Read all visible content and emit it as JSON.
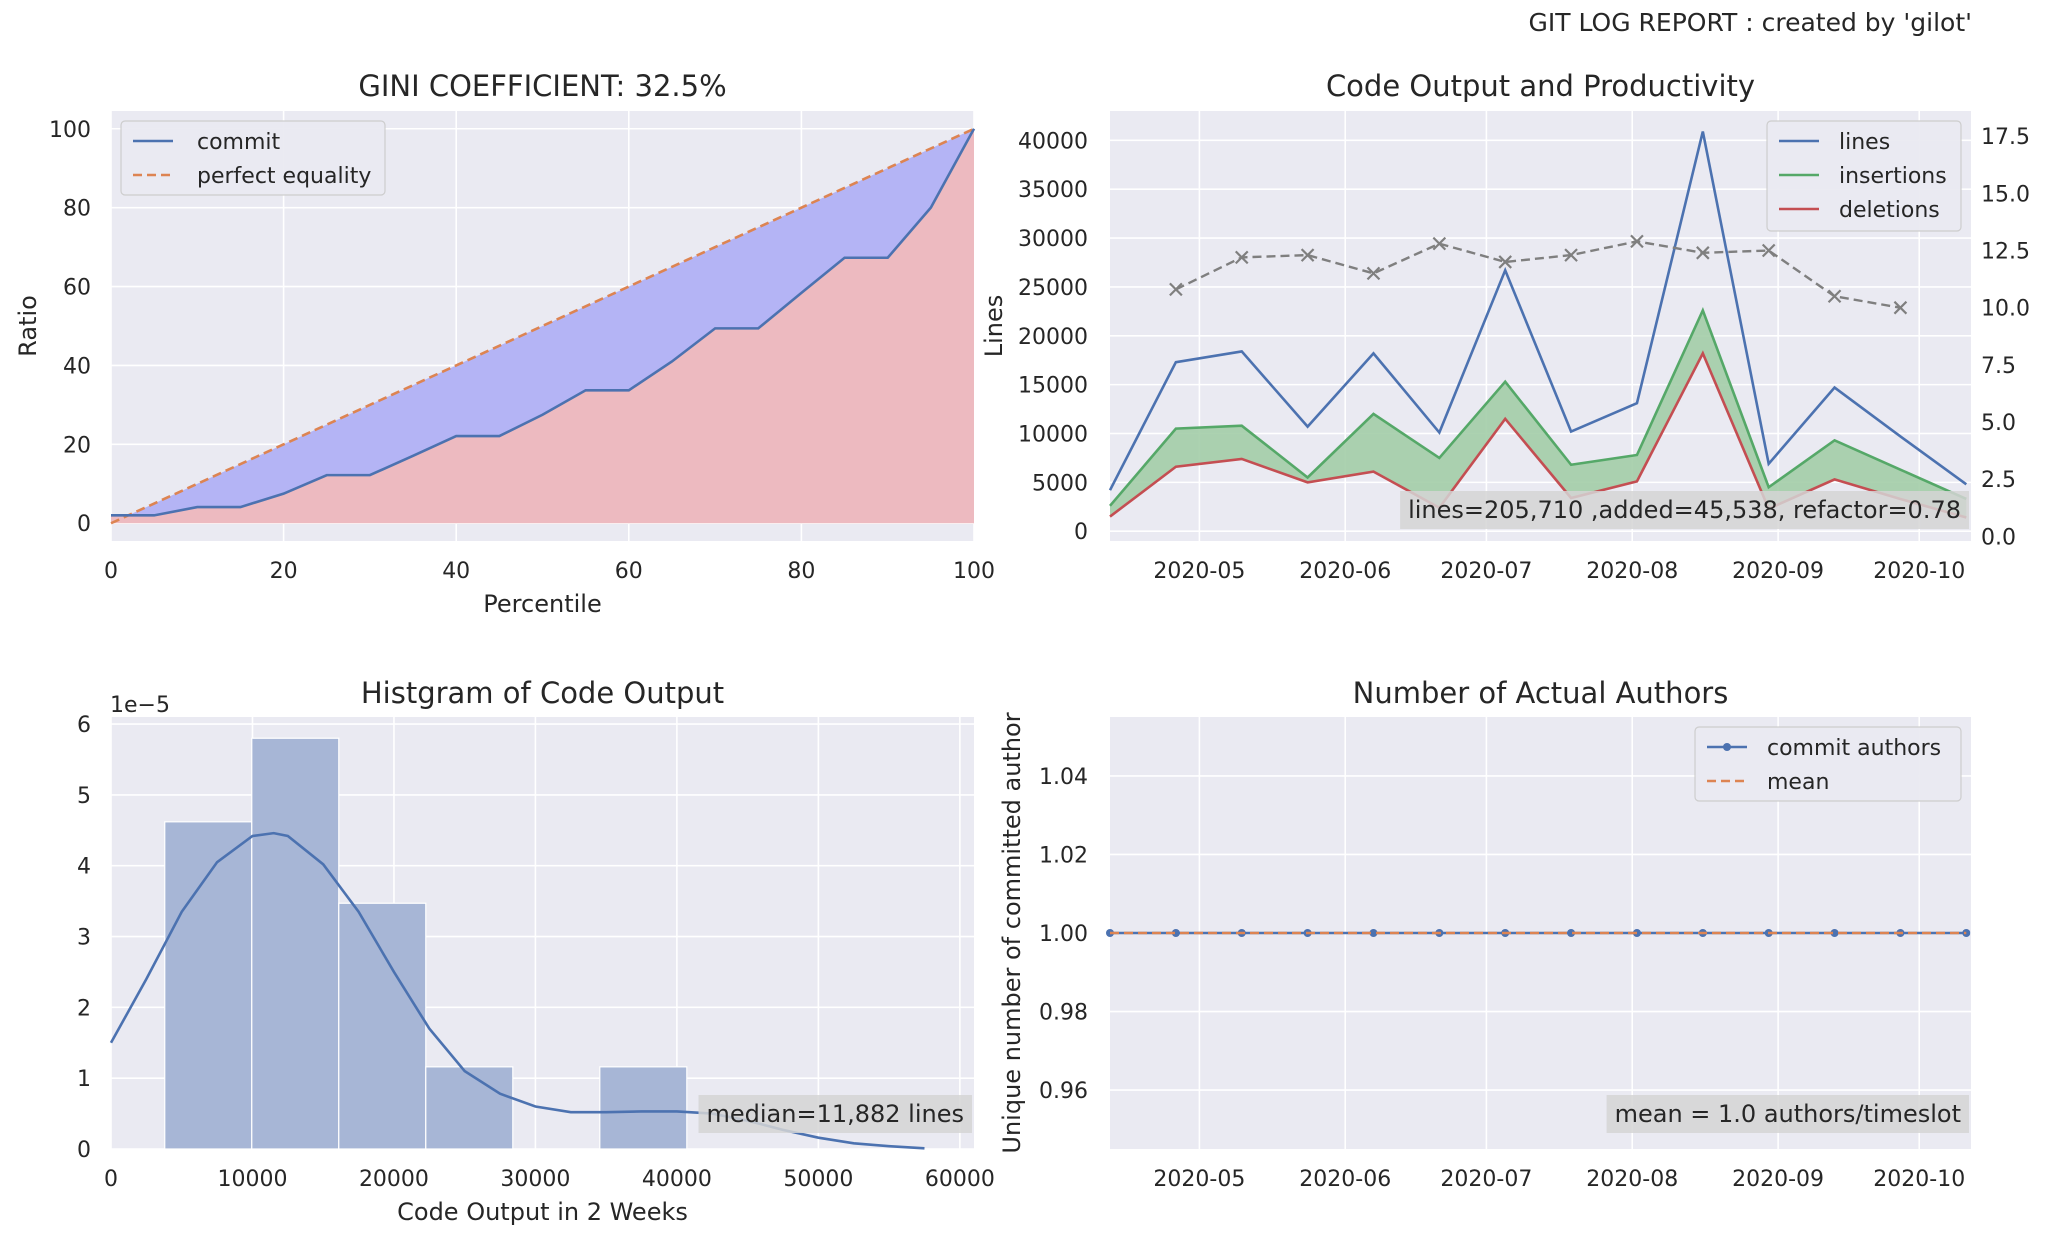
{
  "page_title": "GIT LOG REPORT : created by 'gilot'",
  "colors": {
    "plot_bg": "#EAEAF2",
    "grid": "#FFFFFF",
    "blue": "#4C72B0",
    "orange": "#DD8452",
    "green": "#55A868",
    "red": "#C44E52",
    "gray": "#7F7F7F",
    "fill_blue": "#B4B4F5",
    "fill_red": "#EDBAC0",
    "fill_green": "#A3CDA7",
    "hist": "#A7B6D6",
    "annot_bg": "#D5D5D5"
  },
  "chart_data": [
    {
      "type": "line",
      "title": "GINI COEFFICIENT: 32.5%",
      "xlabel": "Percentile",
      "ylabel": "Ratio",
      "xlim": [
        0,
        100
      ],
      "ylim": [
        -4.5,
        104.5
      ],
      "xticks": [
        0,
        20,
        40,
        60,
        80,
        100
      ],
      "yticks": [
        0,
        20,
        40,
        60,
        80,
        100
      ],
      "series": [
        {
          "name": "commit",
          "x": [
            0,
            5,
            10,
            15,
            20,
            25,
            30,
            35,
            40,
            45,
            50,
            55,
            60,
            65,
            70,
            75,
            80,
            85,
            90,
            95,
            100
          ],
          "y": [
            2,
            2,
            4.1,
            4.1,
            7.5,
            12.2,
            12.2,
            17.1,
            22.1,
            22.1,
            27.5,
            33.7,
            33.7,
            41,
            49.4,
            49.4,
            58.4,
            67.3,
            67.3,
            80,
            100
          ]
        },
        {
          "name": "perfect equality",
          "x": [
            0,
            100
          ],
          "y": [
            0,
            100
          ]
        }
      ],
      "legend": "top-left",
      "grid": true
    },
    {
      "type": "line",
      "title": "Code Output and Productivity",
      "ylabel": "Lines",
      "xlim": [
        "2020-04-12",
        "2020-10-12"
      ],
      "ylim": [
        -1000,
        43000
      ],
      "y2lim": [
        -0.2,
        18.6
      ],
      "x_dates": [
        "2020-04-12",
        "2020-04-26",
        "2020-05-10",
        "2020-05-24",
        "2020-06-07",
        "2020-06-21",
        "2020-07-05",
        "2020-07-19",
        "2020-08-02",
        "2020-08-16",
        "2020-08-30",
        "2020-09-13",
        "2020-09-27",
        "2020-10-11"
      ],
      "xticks": [
        "2020-05-01",
        "2020-06-01",
        "2020-07-01",
        "2020-08-01",
        "2020-09-01",
        "2020-10-01"
      ],
      "xtick_labels": [
        "2020-05",
        "2020-06",
        "2020-07",
        "2020-08",
        "2020-09",
        "2020-10"
      ],
      "yticks": [
        0,
        5000,
        10000,
        15000,
        20000,
        25000,
        30000,
        35000,
        40000
      ],
      "y2ticks": [
        0.0,
        2.5,
        5.0,
        7.5,
        10.0,
        12.5,
        15.0,
        17.5
      ],
      "y2tick_labels": [
        "0.0",
        "2.5",
        "5.0",
        "7.5",
        "10.0",
        "12.5",
        "15.0",
        "17.5"
      ],
      "series": [
        {
          "name": "lines",
          "values": [
            4200,
            17300,
            18400,
            10700,
            18200,
            10100,
            26700,
            10200,
            13100,
            40900,
            6900,
            14700,
            9700,
            4800
          ]
        },
        {
          "name": "insertions",
          "values": [
            2600,
            10500,
            10800,
            5500,
            12000,
            7500,
            15300,
            6800,
            7800,
            22600,
            4500,
            9300,
            6300,
            3300
          ]
        },
        {
          "name": "deletions",
          "values": [
            1500,
            6600,
            7400,
            5000,
            6100,
            2400,
            11500,
            3400,
            5100,
            18200,
            2300,
            5300,
            3300,
            1400
          ]
        }
      ],
      "productivity": {
        "x_dates": [
          "2020-04-26",
          "2020-05-10",
          "2020-05-24",
          "2020-06-07",
          "2020-06-21",
          "2020-07-05",
          "2020-07-19",
          "2020-08-02",
          "2020-08-16",
          "2020-08-30",
          "2020-09-13",
          "2020-09-27"
        ],
        "values": [
          10.8,
          12.2,
          12.3,
          11.5,
          12.8,
          12.0,
          12.3,
          12.9,
          12.4,
          12.5,
          10.5,
          10.0
        ]
      },
      "annotation": "lines=205,710 ,added=45,538, refactor=0.78",
      "legend": "top-right",
      "grid": true
    },
    {
      "type": "bar",
      "title": "Histgram of Code Output",
      "xlabel": "Code Output in 2 Weeks",
      "y_offset_label": "1e−5",
      "xlim": [
        0,
        61000
      ],
      "ylim": [
        0,
        6.1
      ],
      "xticks": [
        0,
        10000,
        20000,
        30000,
        40000,
        50000,
        60000
      ],
      "yticks": [
        0,
        1,
        2,
        3,
        4,
        5,
        6
      ],
      "bins": [
        {
          "x0": 3800,
          "x1": 9950,
          "value": 4.62
        },
        {
          "x0": 9950,
          "x1": 16100,
          "value": 5.8
        },
        {
          "x0": 16100,
          "x1": 22250,
          "value": 3.47
        },
        {
          "x0": 22250,
          "x1": 28400,
          "value": 1.16
        },
        {
          "x0": 28400,
          "x1": 34550,
          "value": 0
        },
        {
          "x0": 34550,
          "x1": 40700,
          "value": 1.16
        }
      ],
      "kde": {
        "x": [
          0,
          2500,
          5000,
          7500,
          10000,
          11500,
          12500,
          15000,
          17500,
          20000,
          22500,
          25000,
          27500,
          30000,
          32500,
          35000,
          37500,
          40000,
          42500,
          45000,
          47500,
          50000,
          52500,
          55000,
          57500
        ],
        "y": [
          1.5,
          2.4,
          3.35,
          4.05,
          4.42,
          4.46,
          4.42,
          4.02,
          3.35,
          2.5,
          1.7,
          1.1,
          0.78,
          0.6,
          0.52,
          0.52,
          0.53,
          0.53,
          0.5,
          0.4,
          0.27,
          0.16,
          0.08,
          0.04,
          0.01
        ]
      },
      "annotation": "median=11,882 lines",
      "grid": true
    },
    {
      "type": "line",
      "title": "Number of Actual Authors",
      "ylabel": "Unique number of committed author",
      "xlim": [
        "2020-04-12",
        "2020-10-12"
      ],
      "ylim": [
        0.945,
        1.055
      ],
      "yticks": [
        0.96,
        0.98,
        1.0,
        1.02,
        1.04
      ],
      "ytick_labels": [
        "0.96",
        "0.98",
        "1.00",
        "1.02",
        "1.04"
      ],
      "xticks": [
        "2020-05-01",
        "2020-06-01",
        "2020-07-01",
        "2020-08-01",
        "2020-09-01",
        "2020-10-01"
      ],
      "xtick_labels": [
        "2020-05",
        "2020-06",
        "2020-07",
        "2020-08",
        "2020-09",
        "2020-10"
      ],
      "x_dates": [
        "2020-04-12",
        "2020-04-26",
        "2020-05-10",
        "2020-05-24",
        "2020-06-07",
        "2020-06-21",
        "2020-07-05",
        "2020-07-19",
        "2020-08-02",
        "2020-08-16",
        "2020-08-30",
        "2020-09-13",
        "2020-09-27",
        "2020-10-11"
      ],
      "series": [
        {
          "name": "commit authors",
          "values": [
            1,
            1,
            1,
            1,
            1,
            1,
            1,
            1,
            1,
            1,
            1,
            1,
            1,
            1
          ]
        },
        {
          "name": "mean",
          "values": [
            1,
            1,
            1,
            1,
            1,
            1,
            1,
            1,
            1,
            1,
            1,
            1,
            1,
            1
          ]
        }
      ],
      "annotation": "mean = 1.0 authors/timeslot",
      "legend": "top-right",
      "grid": true
    }
  ]
}
